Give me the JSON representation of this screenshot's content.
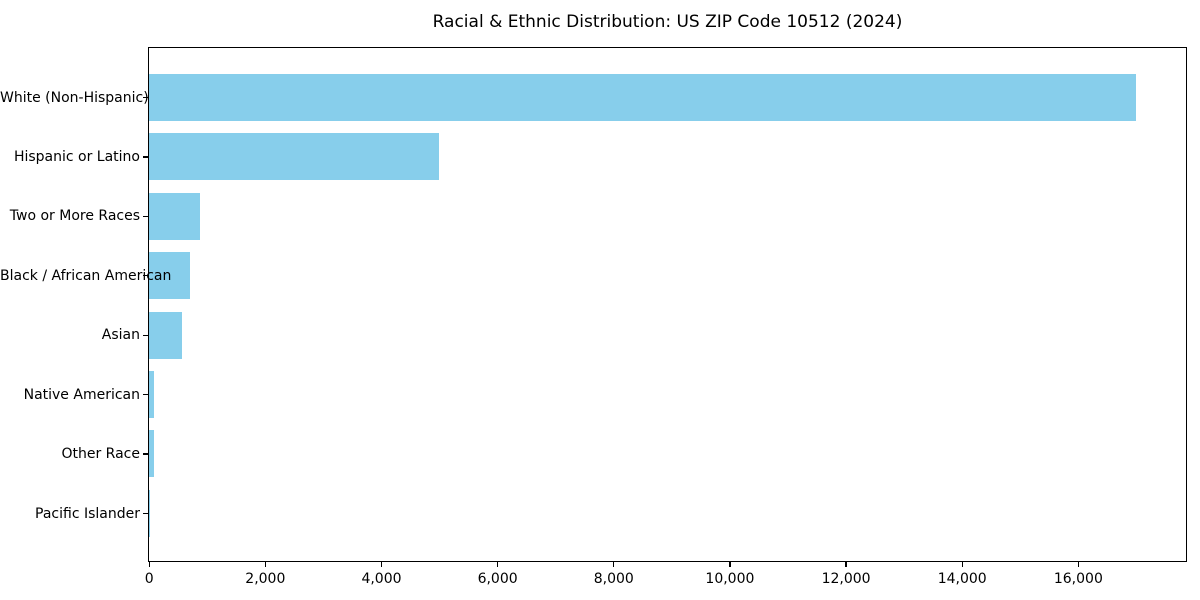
{
  "chart_data": {
    "type": "bar",
    "orientation": "horizontal",
    "title": "Racial & Ethnic Distribution: US ZIP Code 10512 (2024)",
    "categories": [
      "White (Non-Hispanic)",
      "Hispanic or Latino",
      "Two or More Races",
      "Black / African American",
      "Asian",
      "Native American",
      "Other Race",
      "Pacific Islander"
    ],
    "values": [
      17000,
      5000,
      880,
      700,
      570,
      80,
      90,
      10
    ],
    "bar_color": "#87CEEB",
    "axis_color": "#000000",
    "background_color": "#ffffff",
    "xlabel": "",
    "ylabel": "",
    "xlim": [
      0,
      17850
    ],
    "xticks": [
      0,
      2000,
      4000,
      6000,
      8000,
      10000,
      12000,
      14000,
      16000
    ],
    "xtick_labels": [
      "0",
      "2,000",
      "4,000",
      "6,000",
      "8,000",
      "10,000",
      "12,000",
      "14,000",
      "16,000"
    ],
    "grid": false,
    "legend": "none"
  }
}
